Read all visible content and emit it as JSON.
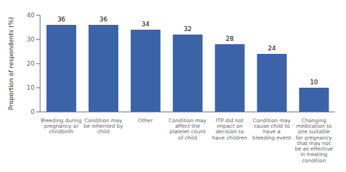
{
  "chart_data": {
    "type": "bar",
    "categories": [
      "Bleeding during\npregnancy or\nchildbirth",
      "Condition may\nbe inherited by\nchild",
      "Other",
      "Condition may\naffect the\nplatelet count\nof child",
      "ITP did not\nimpact on\ndecision to\nhave children",
      "Condition may\ncause child to\nhave a\nbleeding event",
      "Changing\nmedication to\none suitable\nfor pregnancy\nthat may not\nbe as effective\nin treating\ncondition"
    ],
    "values": [
      36,
      36,
      34,
      32,
      28,
      24,
      10
    ],
    "color": "#3A63A8",
    "ylabel": "Proportion of respondents (%)",
    "ylim": [
      0,
      40
    ],
    "yticks": [
      0,
      10,
      20,
      30,
      40
    ],
    "grid": false,
    "data_labels": true
  }
}
